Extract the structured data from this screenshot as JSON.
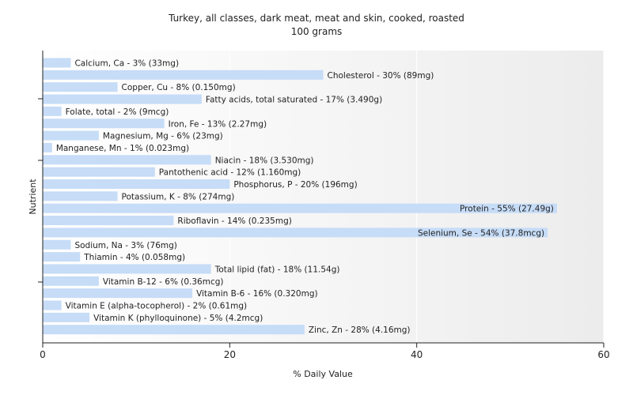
{
  "chart_data": {
    "type": "bar",
    "orientation": "horizontal",
    "title": "Turkey, all classes, dark meat, meat and skin, cooked, roasted",
    "subtitle": "100 grams",
    "xlabel": "% Daily Value",
    "ylabel": "Nutrient",
    "xlim": [
      0,
      60
    ],
    "xticks": [
      0,
      20,
      40,
      60
    ],
    "grid": true,
    "bar_color": "#c6dcf7",
    "categories": [
      "Calcium, Ca",
      "Cholesterol",
      "Copper, Cu",
      "Fatty acids, total saturated",
      "Folate, total",
      "Iron, Fe",
      "Magnesium, Mg",
      "Manganese, Mn",
      "Niacin",
      "Pantothenic acid",
      "Phosphorus, P",
      "Potassium, K",
      "Protein",
      "Riboflavin",
      "Selenium, Se",
      "Sodium, Na",
      "Thiamin",
      "Total lipid (fat)",
      "Vitamin B-12",
      "Vitamin B-6",
      "Vitamin E (alpha-tocopherol)",
      "Vitamin K (phylloquinone)",
      "Zinc, Zn"
    ],
    "values": [
      3,
      30,
      8,
      17,
      2,
      13,
      6,
      1,
      18,
      12,
      20,
      8,
      55,
      14,
      54,
      3,
      4,
      18,
      6,
      16,
      2,
      5,
      28
    ],
    "labels": [
      "Calcium, Ca - 3% (33mg)",
      "Cholesterol - 30% (89mg)",
      "Copper, Cu - 8% (0.150mg)",
      "Fatty acids, total saturated - 17% (3.490g)",
      "Folate, total - 2% (9mcg)",
      "Iron, Fe - 13% (2.27mg)",
      "Magnesium, Mg - 6% (23mg)",
      "Manganese, Mn - 1% (0.023mg)",
      "Niacin - 18% (3.530mg)",
      "Pantothenic acid - 12% (1.160mg)",
      "Phosphorus, P - 20% (196mg)",
      "Potassium, K - 8% (274mg)",
      "Protein - 55% (27.49g)",
      "Riboflavin - 14% (0.235mg)",
      "Selenium, Se - 54% (37.8mcg)",
      "Sodium, Na - 3% (76mg)",
      "Thiamin - 4% (0.058mg)",
      "Total lipid (fat) - 18% (11.54g)",
      "Vitamin B-12 - 6% (0.36mcg)",
      "Vitamin B-6 - 16% (0.320mg)",
      "Vitamin E (alpha-tocopherol) - 2% (0.61mg)",
      "Vitamin K (phylloquinone) - 5% (4.2mcg)",
      "Zinc, Zn - 28% (4.16mg)"
    ]
  }
}
